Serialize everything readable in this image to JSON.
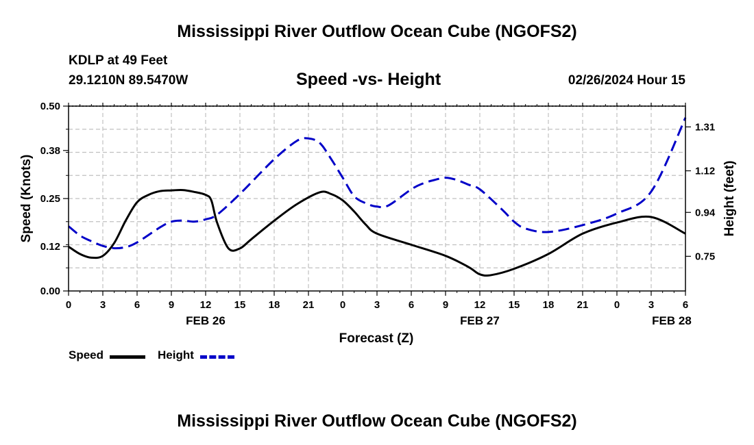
{
  "page": {
    "title_top": "Mississippi River Outflow Ocean Cube (NGOFS2)",
    "title_bottom": "Mississippi River Outflow Ocean Cube (NGOFS2)",
    "station": "KDLP at 49 Feet",
    "coords": "29.1210N  89.5470W",
    "datetime": "02/26/2024 Hour 15"
  },
  "colors": {
    "speed": "#000000",
    "height": "#0000c8",
    "grid": "#c0c0c0"
  },
  "legend": {
    "speed_label": "Speed",
    "height_label": "Height"
  },
  "chart_data": {
    "type": "line",
    "title": "Speed -vs- Height",
    "xlabel": "Forecast (Z)",
    "ylabel": "Speed (Knots)",
    "y2label": "Height (feet)",
    "x_range": [
      0,
      54
    ],
    "ylim": [
      0,
      0.5
    ],
    "y2lim": [
      0.6,
      1.4
    ],
    "y_ticks": [
      0.0,
      0.12,
      0.25,
      0.38,
      0.5
    ],
    "y_tick_labels": [
      "0.00",
      "0.12",
      "0.25",
      "0.38",
      "0.50"
    ],
    "y2_ticks": [
      0.75,
      0.94,
      1.12,
      1.31
    ],
    "y2_tick_labels": [
      "0.75",
      "0.94",
      "1.12",
      "1.31"
    ],
    "x_ticks": [
      0,
      3,
      6,
      9,
      12,
      15,
      18,
      21,
      24,
      27,
      30,
      33,
      36,
      39,
      42,
      45,
      48,
      51,
      54
    ],
    "x_tick_labels": [
      "0",
      "3",
      "6",
      "9",
      "12",
      "15",
      "18",
      "21",
      "0",
      "3",
      "6",
      "9",
      "12",
      "15",
      "18",
      "21",
      "0",
      "3",
      "6"
    ],
    "date_labels": [
      {
        "x": 12,
        "label": "FEB 26"
      },
      {
        "x": 36,
        "label": "FEB 27"
      },
      {
        "x": 52.8,
        "label": "FEB 28"
      }
    ],
    "series": [
      {
        "name": "Speed",
        "axis": "left",
        "style": "solid",
        "x": [
          0,
          1,
          2,
          3,
          4,
          5,
          6,
          7,
          8,
          9,
          10,
          11,
          12,
          12.5,
          13,
          14,
          15,
          16,
          18,
          20,
          22,
          23,
          24,
          25,
          26,
          27,
          30,
          33,
          35,
          36,
          37,
          39,
          42,
          45,
          48,
          51,
          54
        ],
        "values": [
          0.12,
          0.1,
          0.09,
          0.095,
          0.13,
          0.19,
          0.24,
          0.26,
          0.27,
          0.272,
          0.273,
          0.268,
          0.26,
          0.245,
          0.185,
          0.115,
          0.115,
          0.14,
          0.19,
          0.235,
          0.267,
          0.262,
          0.245,
          0.215,
          0.18,
          0.155,
          0.125,
          0.095,
          0.065,
          0.045,
          0.043,
          0.06,
          0.1,
          0.155,
          0.185,
          0.2,
          0.155
        ]
      },
      {
        "name": "Height",
        "axis": "right",
        "style": "dashed",
        "x": [
          0,
          1,
          2,
          3,
          4,
          5,
          6,
          8,
          9,
          10,
          11,
          12,
          13,
          15,
          18,
          20,
          21,
          22,
          23,
          24,
          25,
          26,
          27,
          28,
          30,
          31,
          32,
          33,
          34,
          35,
          36,
          38,
          39,
          40,
          42,
          45,
          48,
          51,
          54
        ],
        "values": [
          0.88,
          0.84,
          0.815,
          0.795,
          0.785,
          0.79,
          0.81,
          0.875,
          0.9,
          0.905,
          0.9,
          0.91,
          0.93,
          1.02,
          1.17,
          1.25,
          1.26,
          1.24,
          1.17,
          1.09,
          1.01,
          0.98,
          0.965,
          0.97,
          1.04,
          1.065,
          1.08,
          1.09,
          1.08,
          1.06,
          1.04,
          0.95,
          0.9,
          0.87,
          0.855,
          0.885,
          0.935,
          1.03,
          1.35
        ]
      }
    ]
  }
}
